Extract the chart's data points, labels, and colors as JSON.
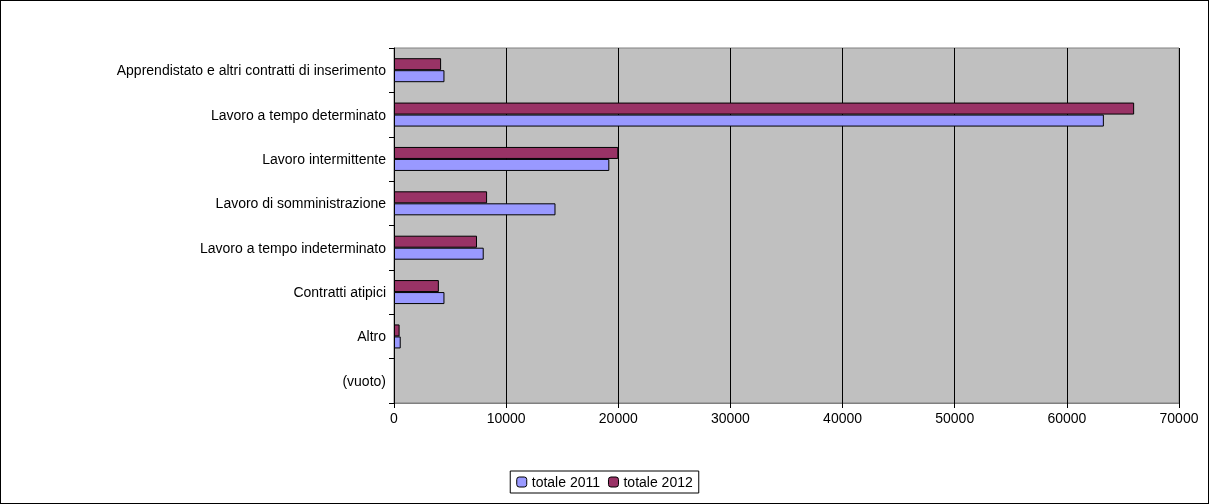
{
  "chart_data": {
    "type": "bar",
    "orientation": "horizontal",
    "categories": [
      "Apprendistato e altri contratti di inserimento",
      "Lavoro a tempo determinato",
      "Lavoro intermittente",
      "Lavoro di somministrazione",
      "Lavoro a tempo indeterminato",
      "Contratti atipici",
      "Altro",
      "(vuoto)"
    ],
    "series": [
      {
        "name": "totale 2011",
        "color": "#9999ff",
        "values": [
          4500,
          63300,
          19200,
          14400,
          8000,
          4500,
          600,
          0
        ]
      },
      {
        "name": "totale 2012",
        "color": "#993366",
        "values": [
          4200,
          66000,
          20000,
          8300,
          7400,
          4000,
          500,
          0
        ]
      }
    ],
    "xlim": [
      0,
      70000
    ],
    "xticks": [
      0,
      10000,
      20000,
      30000,
      40000,
      50000,
      60000,
      70000
    ],
    "grid": "x",
    "legend": "bottom"
  }
}
